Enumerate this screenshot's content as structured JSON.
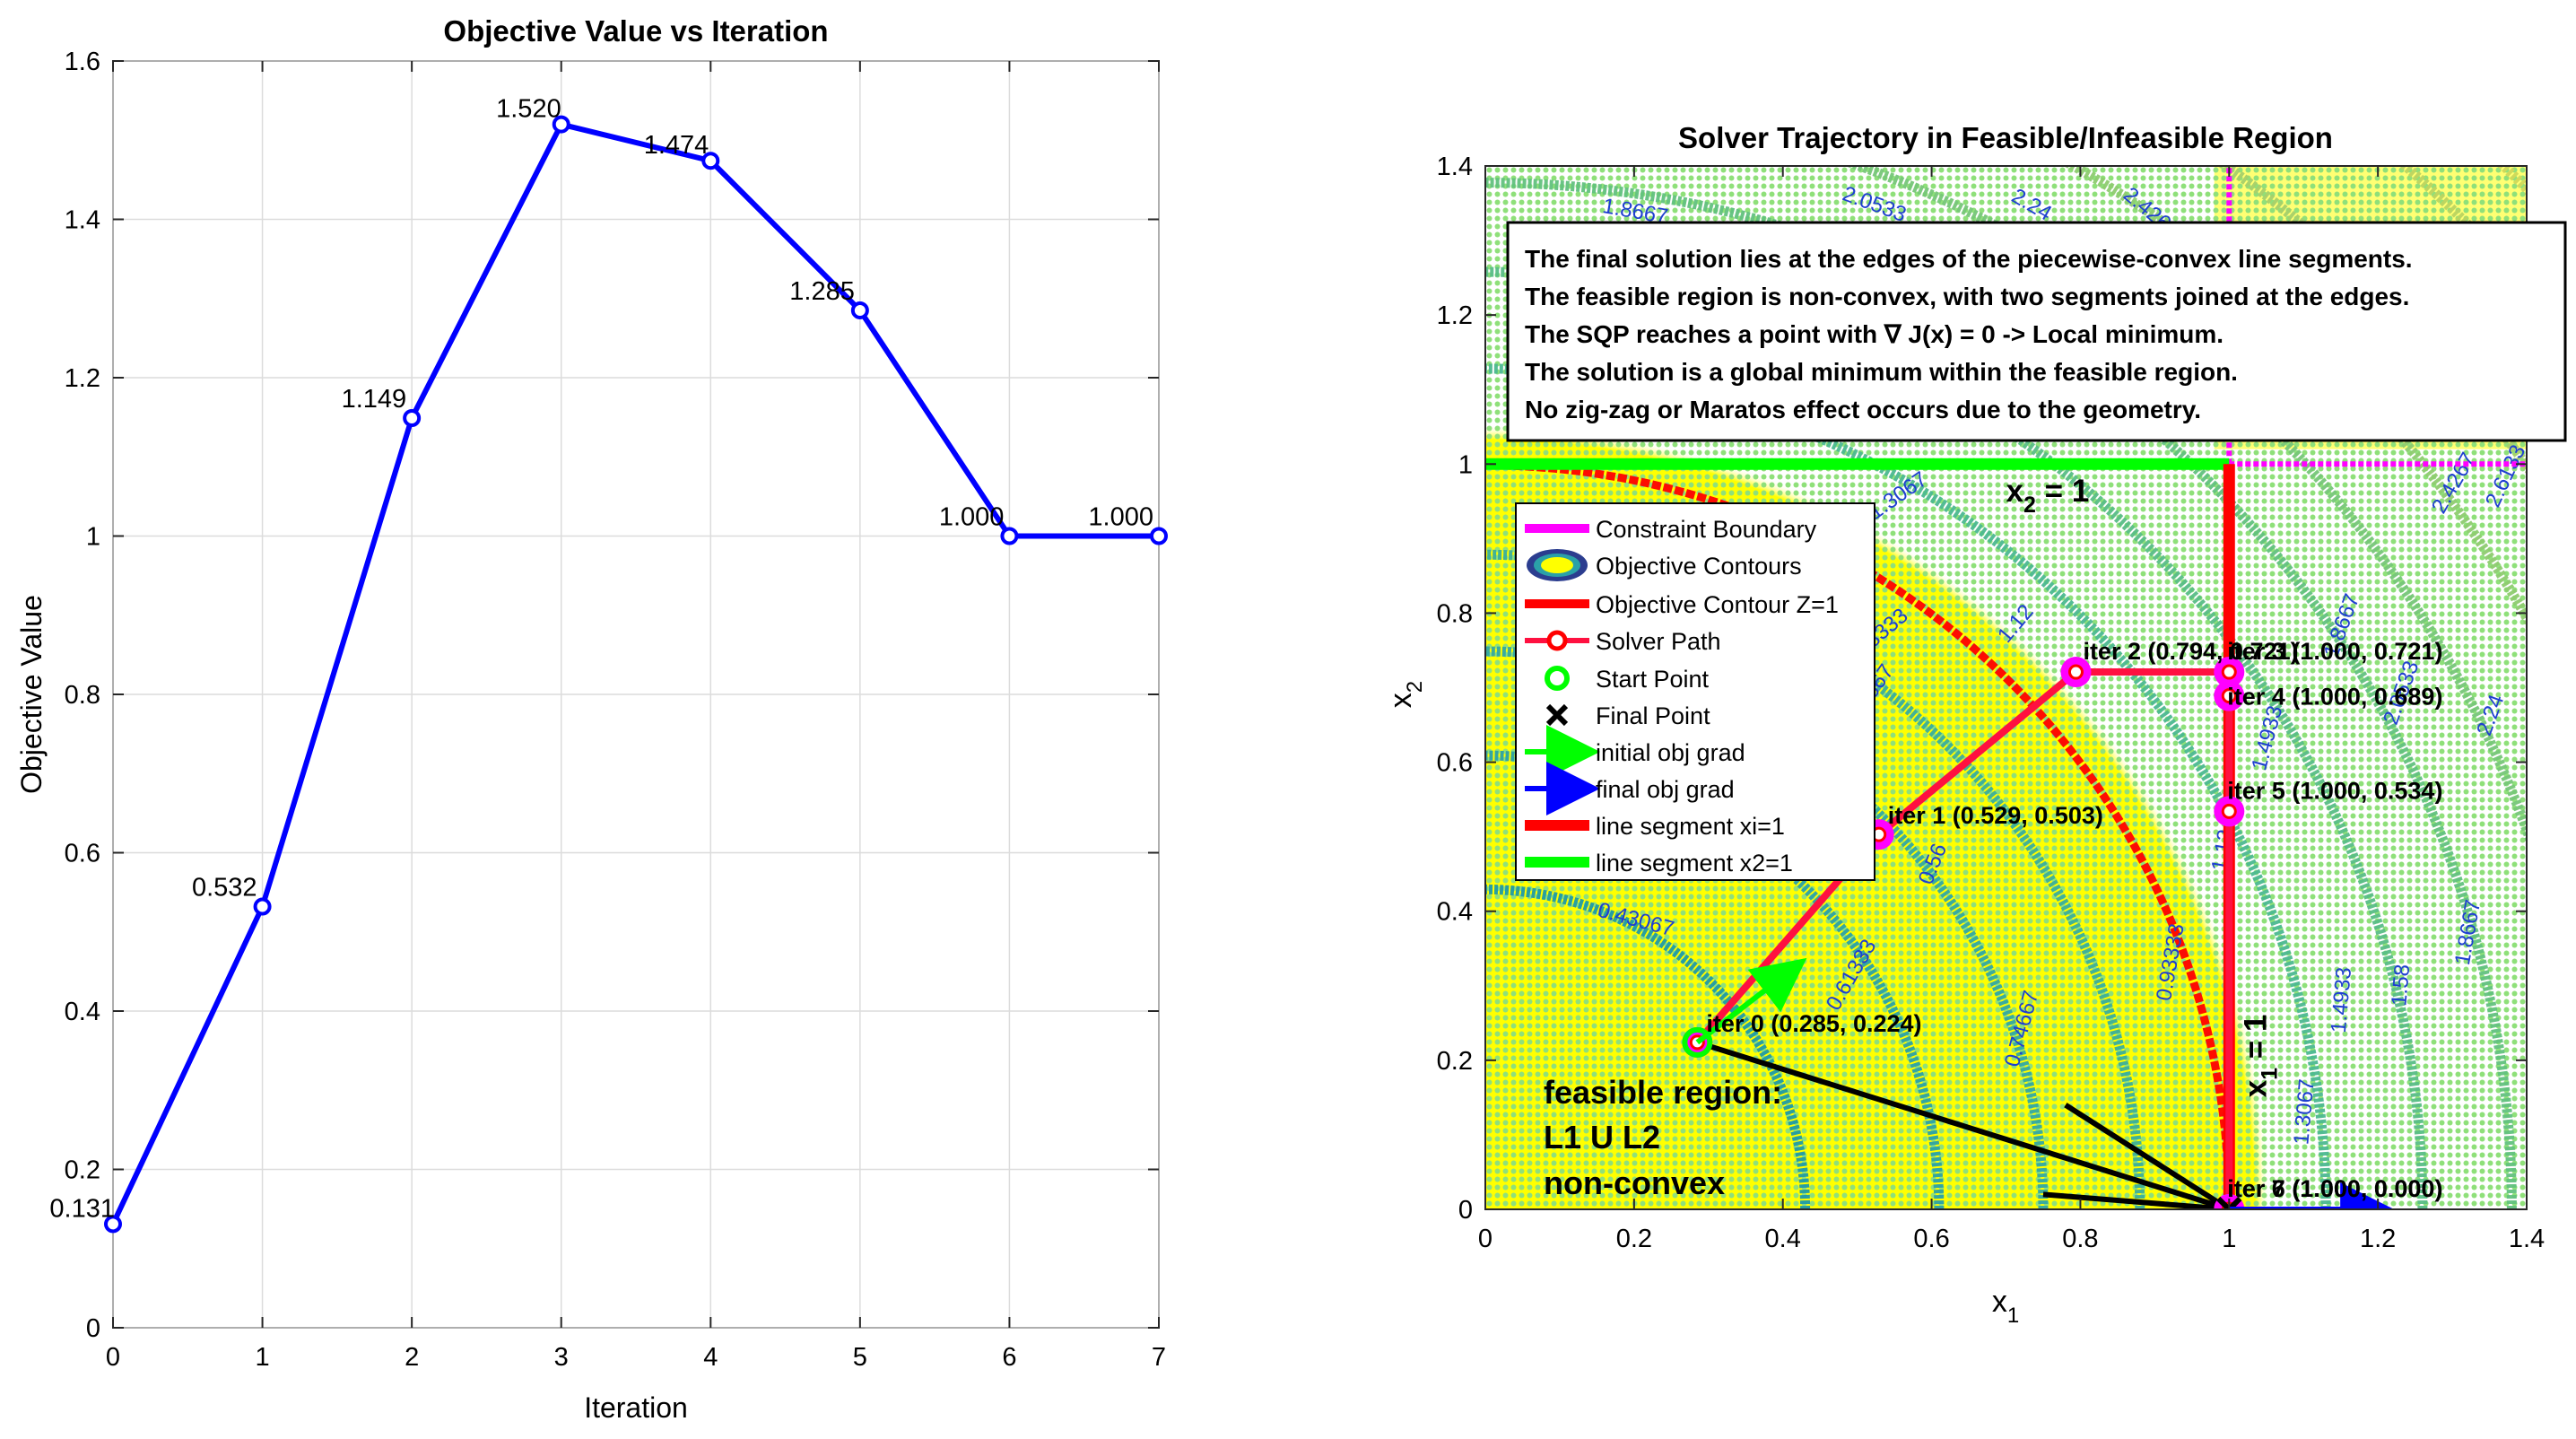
{
  "colors": {
    "magenta": "#ff00ff",
    "blue": "#0000ff",
    "red": "#ff0000",
    "green": "#00ff00",
    "yellow": "#ffff00",
    "teal": "#2aa1a8",
    "dots": "#8fe07a",
    "pathRed": "#ff1040",
    "grid": "#dcdcdc"
  },
  "chart_data": [
    {
      "type": "line",
      "title": "Objective Value vs Iteration",
      "xlabel": "Iteration",
      "ylabel": "Objective Value",
      "xlim": [
        0,
        7
      ],
      "ylim": [
        0,
        1.6
      ],
      "xticks": [
        "0",
        "1",
        "2",
        "3",
        "4",
        "5",
        "6",
        "7"
      ],
      "yticks": [
        "0",
        "0.2",
        "0.4",
        "0.6",
        "0.8",
        "1",
        "1.2",
        "1.4",
        "1.6"
      ],
      "grid": true,
      "x": [
        0,
        1,
        2,
        3,
        4,
        5,
        6,
        7
      ],
      "values": [
        0.131,
        0.532,
        1.149,
        1.52,
        1.474,
        1.285,
        1.0,
        1.0
      ],
      "data_labels": [
        "0.131",
        "0.532",
        "1.149",
        "1.520",
        "1.474",
        "1.285",
        "1.000",
        "1.000"
      ]
    },
    {
      "type": "scatter",
      "title": "Solver Trajectory in Feasible/Infeasible Region",
      "xlabel": "x",
      "xlabel_sub": "1",
      "ylabel": "x",
      "ylabel_sub": "2",
      "xlim": [
        0,
        1.4
      ],
      "ylim": [
        0,
        1.4
      ],
      "xticks": [
        "0",
        "0.2",
        "0.4",
        "0.6",
        "0.8",
        "1",
        "1.2",
        "1.4"
      ],
      "yticks": [
        "0",
        "0.2",
        "0.4",
        "0.6",
        "0.8",
        "1",
        "1.2",
        "1.4"
      ],
      "contour_levels": [
        0.43,
        0.61,
        0.75,
        0.88,
        1.0,
        1.13,
        1.26,
        1.38,
        1.49,
        1.61,
        1.72,
        1.87,
        1.96
      ],
      "contour_labels": [
        {
          "text": "0.43067",
          "x": 0.2,
          "y": 0.38,
          "rot": 15
        },
        {
          "text": "0.61333",
          "x": 0.5,
          "y": 0.31,
          "rot": -60
        },
        {
          "text": "0.56",
          "x": 0.61,
          "y": 0.46,
          "rot": -68
        },
        {
          "text": "0.74667",
          "x": 0.73,
          "y": 0.24,
          "rot": -75
        },
        {
          "text": "0.74667",
          "x": 0.52,
          "y": 0.68,
          "rot": -55
        },
        {
          "text": "0.93333",
          "x": 0.93,
          "y": 0.33,
          "rot": -80
        },
        {
          "text": "0.93333",
          "x": 0.53,
          "y": 0.76,
          "rot": -40
        },
        {
          "text": "1.12",
          "x": 1.0,
          "y": 0.48,
          "rot": -80
        },
        {
          "text": "1.12",
          "x": 0.72,
          "y": 0.78,
          "rot": -50
        },
        {
          "text": "1.3067",
          "x": 0.56,
          "y": 0.95,
          "rot": -35
        },
        {
          "text": "1.3067",
          "x": 1.11,
          "y": 0.13,
          "rot": -85
        },
        {
          "text": "1.4933",
          "x": 1.16,
          "y": 0.28,
          "rot": -85
        },
        {
          "text": "1.4933",
          "x": 1.06,
          "y": 0.63,
          "rot": -75
        },
        {
          "text": "1.58",
          "x": 1.24,
          "y": 0.3,
          "rot": -85
        },
        {
          "text": "1.8667",
          "x": 1.33,
          "y": 0.37,
          "rot": -80
        },
        {
          "text": "1.8667",
          "x": 0.2,
          "y": 1.33,
          "rot": 10
        },
        {
          "text": "1.8667",
          "x": 1.16,
          "y": 0.78,
          "rot": -70
        },
        {
          "text": "2.0533",
          "x": 1.24,
          "y": 0.69,
          "rot": -70
        },
        {
          "text": "2.24",
          "x": 1.36,
          "y": 0.66,
          "rot": -70
        },
        {
          "text": "2.0533",
          "x": 0.52,
          "y": 1.34,
          "rot": 20
        },
        {
          "text": "2.24",
          "x": 0.73,
          "y": 1.34,
          "rot": 30
        },
        {
          "text": "2.4267",
          "x": 0.89,
          "y": 1.33,
          "rot": 40
        },
        {
          "text": "2.4267",
          "x": 1.31,
          "y": 0.97,
          "rot": -60
        },
        {
          "text": "2.6133",
          "x": 1.38,
          "y": 0.98,
          "rot": -65
        }
      ],
      "segments": [
        {
          "name": "line segment xi=1",
          "x": [
            1,
            1
          ],
          "y": [
            0,
            1
          ]
        },
        {
          "name": "line segment x2=1",
          "x": [
            0,
            1
          ],
          "y": [
            1,
            1
          ]
        }
      ],
      "segment_labels": [
        {
          "text": "x",
          "sub": "2",
          "after": " = 1",
          "x": 0.7,
          "y": 0.95
        },
        {
          "text": "x",
          "sub": "1",
          "after": " = 1",
          "x": 1.05,
          "y": 0.15
        }
      ],
      "solver_path": {
        "x": [
          0.285,
          0.529,
          0.794,
          1.0,
          1.0,
          1.0,
          1.0,
          1.0
        ],
        "y": [
          0.224,
          0.503,
          0.721,
          0.721,
          0.689,
          0.534,
          0.0,
          0.0
        ]
      },
      "point_labels": [
        "iter 0 (0.285, 0.224)",
        "iter 1 (0.529, 0.503)",
        "iter 2 (0.794, 0.721)",
        "iter 3 (1.000, 0.721)",
        "iter 4 (1.000, 0.689)",
        "iter 5 (1.000, 0.534)",
        "iter 6 (1.000, 0.000)",
        "iter 7 (1.000, 0.000)"
      ],
      "start_point": {
        "x": 0.285,
        "y": 0.224
      },
      "final_point": {
        "x": 1.0,
        "y": 0.0
      },
      "initial_grad": {
        "x": 0.285,
        "y": 0.224,
        "dx": 0.13,
        "dy": 0.1
      },
      "final_grad": {
        "x": 1.0,
        "y": 0.0,
        "dx": 0.2,
        "dy": 0.0
      },
      "extra_lines": [
        {
          "x": [
            0.285,
            1.0
          ],
          "y": [
            0.224,
            0.0
          ]
        },
        {
          "x": [
            0.78,
            1.0
          ],
          "y": [
            0.14,
            0.0
          ]
        },
        {
          "x": [
            0.75,
            1.0
          ],
          "y": [
            0.02,
            0.0
          ]
        }
      ],
      "constraint_boundary": [
        {
          "x": [
            1.0,
            1.0
          ],
          "y": [
            1.0,
            1.4
          ]
        },
        {
          "x": [
            1.0,
            1.4
          ],
          "y": [
            1.0,
            1.0
          ]
        }
      ],
      "legend": [
        "Constraint Boundary",
        "Objective Contours",
        "Objective Contour Z=1",
        "Solver Path",
        "Start Point",
        "Final Point",
        "initial obj grad",
        "final obj grad",
        "line segment xi=1",
        "line segment x2=1"
      ],
      "legend_position": "left",
      "annotation_box": [
        "The final solution lies at the edges of the piecewise-convex line segments.",
        "The feasible region is non-convex, with two segments joined at the edges.",
        "The SQP reaches a point with ∇ J(x) = 0 -> Local minimum.",
        "The solution is a global minimum within the feasible region.",
        "No zig-zag or Maratos effect occurs due to the geometry."
      ],
      "region_label": [
        "feasible region:",
        "L1 U L2",
        "non-convex"
      ]
    }
  ]
}
